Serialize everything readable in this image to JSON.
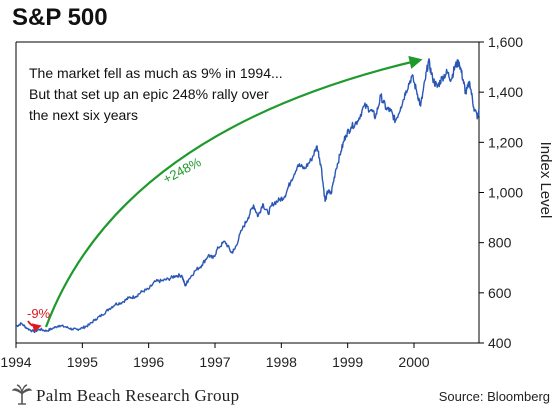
{
  "title": "S&P 500",
  "footer": {
    "brand": "Palm Beach Research Group",
    "source": "Source: Bloomberg"
  },
  "colors": {
    "series": "#2a56b5",
    "arrow_green": "#1e9a2d",
    "callout_red": "#e0181e",
    "text": "#111111"
  },
  "chart_data": {
    "type": "line",
    "title": "S&P 500",
    "ylabel": "Index Level",
    "xlabel": "",
    "ylim": [
      400,
      1600
    ],
    "xlim": [
      1994.0,
      2000.98
    ],
    "y_ticks": [
      400,
      600,
      800,
      1000,
      1200,
      1400,
      1600
    ],
    "y_tick_labels": [
      "400",
      "600",
      "800",
      "1,000",
      "1,200",
      "1,400",
      "1,600"
    ],
    "x_ticks": [
      1994,
      1995,
      1996,
      1997,
      1998,
      1999,
      2000
    ],
    "x_tick_labels": [
      "1994",
      "1995",
      "1996",
      "1997",
      "1998",
      "1999",
      "2000"
    ],
    "grid": false,
    "series": [
      {
        "points": [
          [
            1994.0,
            466
          ],
          [
            1994.08,
            478
          ],
          [
            1994.17,
            458
          ],
          [
            1994.27,
            445
          ],
          [
            1994.36,
            455
          ],
          [
            1994.46,
            448
          ],
          [
            1994.55,
            458
          ],
          [
            1994.65,
            470
          ],
          [
            1994.75,
            464
          ],
          [
            1994.85,
            455
          ],
          [
            1994.92,
            454
          ],
          [
            1995.0,
            460
          ],
          [
            1995.1,
            472
          ],
          [
            1995.2,
            495
          ],
          [
            1995.3,
            512
          ],
          [
            1995.4,
            535
          ],
          [
            1995.5,
            555
          ],
          [
            1995.6,
            562
          ],
          [
            1995.7,
            580
          ],
          [
            1995.8,
            585
          ],
          [
            1995.9,
            605
          ],
          [
            1996.0,
            615
          ],
          [
            1996.1,
            645
          ],
          [
            1996.2,
            648
          ],
          [
            1996.3,
            655
          ],
          [
            1996.4,
            668
          ],
          [
            1996.5,
            670
          ],
          [
            1996.55,
            628
          ],
          [
            1996.6,
            652
          ],
          [
            1996.7,
            688
          ],
          [
            1996.8,
            710
          ],
          [
            1996.9,
            750
          ],
          [
            1996.97,
            738
          ],
          [
            1997.05,
            780
          ],
          [
            1997.15,
            805
          ],
          [
            1997.25,
            760
          ],
          [
            1997.3,
            775
          ],
          [
            1997.4,
            848
          ],
          [
            1997.5,
            900
          ],
          [
            1997.58,
            950
          ],
          [
            1997.65,
            905
          ],
          [
            1997.72,
            955
          ],
          [
            1997.8,
            915
          ],
          [
            1997.87,
            955
          ],
          [
            1997.97,
            970
          ],
          [
            1998.05,
            985
          ],
          [
            1998.15,
            1050
          ],
          [
            1998.25,
            1110
          ],
          [
            1998.35,
            1095
          ],
          [
            1998.45,
            1130
          ],
          [
            1998.54,
            1185
          ],
          [
            1998.6,
            1105
          ],
          [
            1998.66,
            965
          ],
          [
            1998.7,
            1005
          ],
          [
            1998.75,
            995
          ],
          [
            1998.82,
            1090
          ],
          [
            1998.9,
            1165
          ],
          [
            1998.97,
            1228
          ],
          [
            1999.05,
            1260
          ],
          [
            1999.15,
            1285
          ],
          [
            1999.25,
            1345
          ],
          [
            1999.35,
            1330
          ],
          [
            1999.42,
            1300
          ],
          [
            1999.5,
            1385
          ],
          [
            1999.58,
            1335
          ],
          [
            1999.65,
            1325
          ],
          [
            1999.72,
            1285
          ],
          [
            1999.8,
            1340
          ],
          [
            1999.88,
            1405
          ],
          [
            1999.97,
            1465
          ],
          [
            2000.04,
            1405
          ],
          [
            2000.1,
            1345
          ],
          [
            2000.17,
            1450
          ],
          [
            2000.22,
            1525
          ],
          [
            2000.28,
            1455
          ],
          [
            2000.35,
            1420
          ],
          [
            2000.42,
            1455
          ],
          [
            2000.5,
            1480
          ],
          [
            2000.56,
            1450
          ],
          [
            2000.62,
            1505
          ],
          [
            2000.68,
            1520
          ],
          [
            2000.74,
            1450
          ],
          [
            2000.78,
            1395
          ],
          [
            2000.84,
            1440
          ],
          [
            2000.9,
            1340
          ],
          [
            2000.96,
            1300
          ],
          [
            2000.98,
            1325
          ]
        ]
      }
    ],
    "annotations": {
      "text_line1": "The market fell as much as 9% in 1994...",
      "text_line2": "But that set up an epic 248% rally over",
      "text_line3": "the next six years",
      "callout_red": "-9%",
      "callout_green": "+248%"
    }
  }
}
